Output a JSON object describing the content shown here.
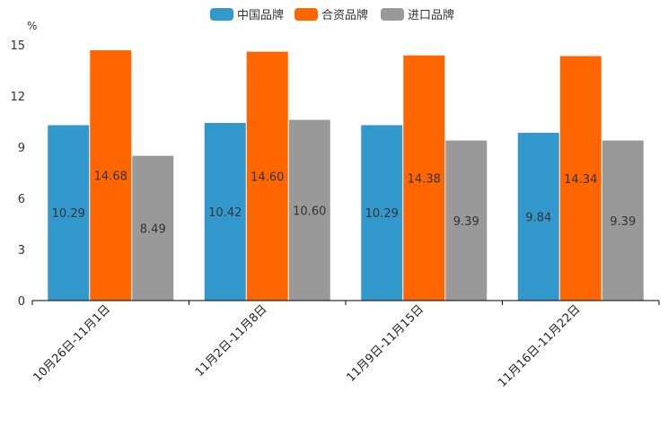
{
  "chart_data": {
    "type": "bar",
    "title": "",
    "ylabel": "%",
    "xlabel": "",
    "ylim": [
      0,
      15
    ],
    "yticks": [
      0,
      3,
      6,
      9,
      12,
      15
    ],
    "categories": [
      "10月26日-11月1日",
      "11月2日-11月8日",
      "11月9日-11月15日",
      "11月16日-11月22日"
    ],
    "series": [
      {
        "name": "中国品牌",
        "color": "#3399cc",
        "values": [
          10.29,
          10.42,
          10.29,
          9.84
        ],
        "labels": [
          "10.29",
          "10.42",
          "10.29",
          "9.84"
        ]
      },
      {
        "name": "合资品牌",
        "color": "#ff6600",
        "values": [
          14.68,
          14.6,
          14.38,
          14.34
        ],
        "labels": [
          "14.68",
          "14.60",
          "14.38",
          "14.34"
        ]
      },
      {
        "name": "进口品牌",
        "color": "#999999",
        "values": [
          8.49,
          10.6,
          9.39,
          9.39
        ],
        "labels": [
          "8.49",
          "10.60",
          "9.39",
          "9.39"
        ]
      }
    ],
    "legend_position": "top-center",
    "grid": false
  }
}
